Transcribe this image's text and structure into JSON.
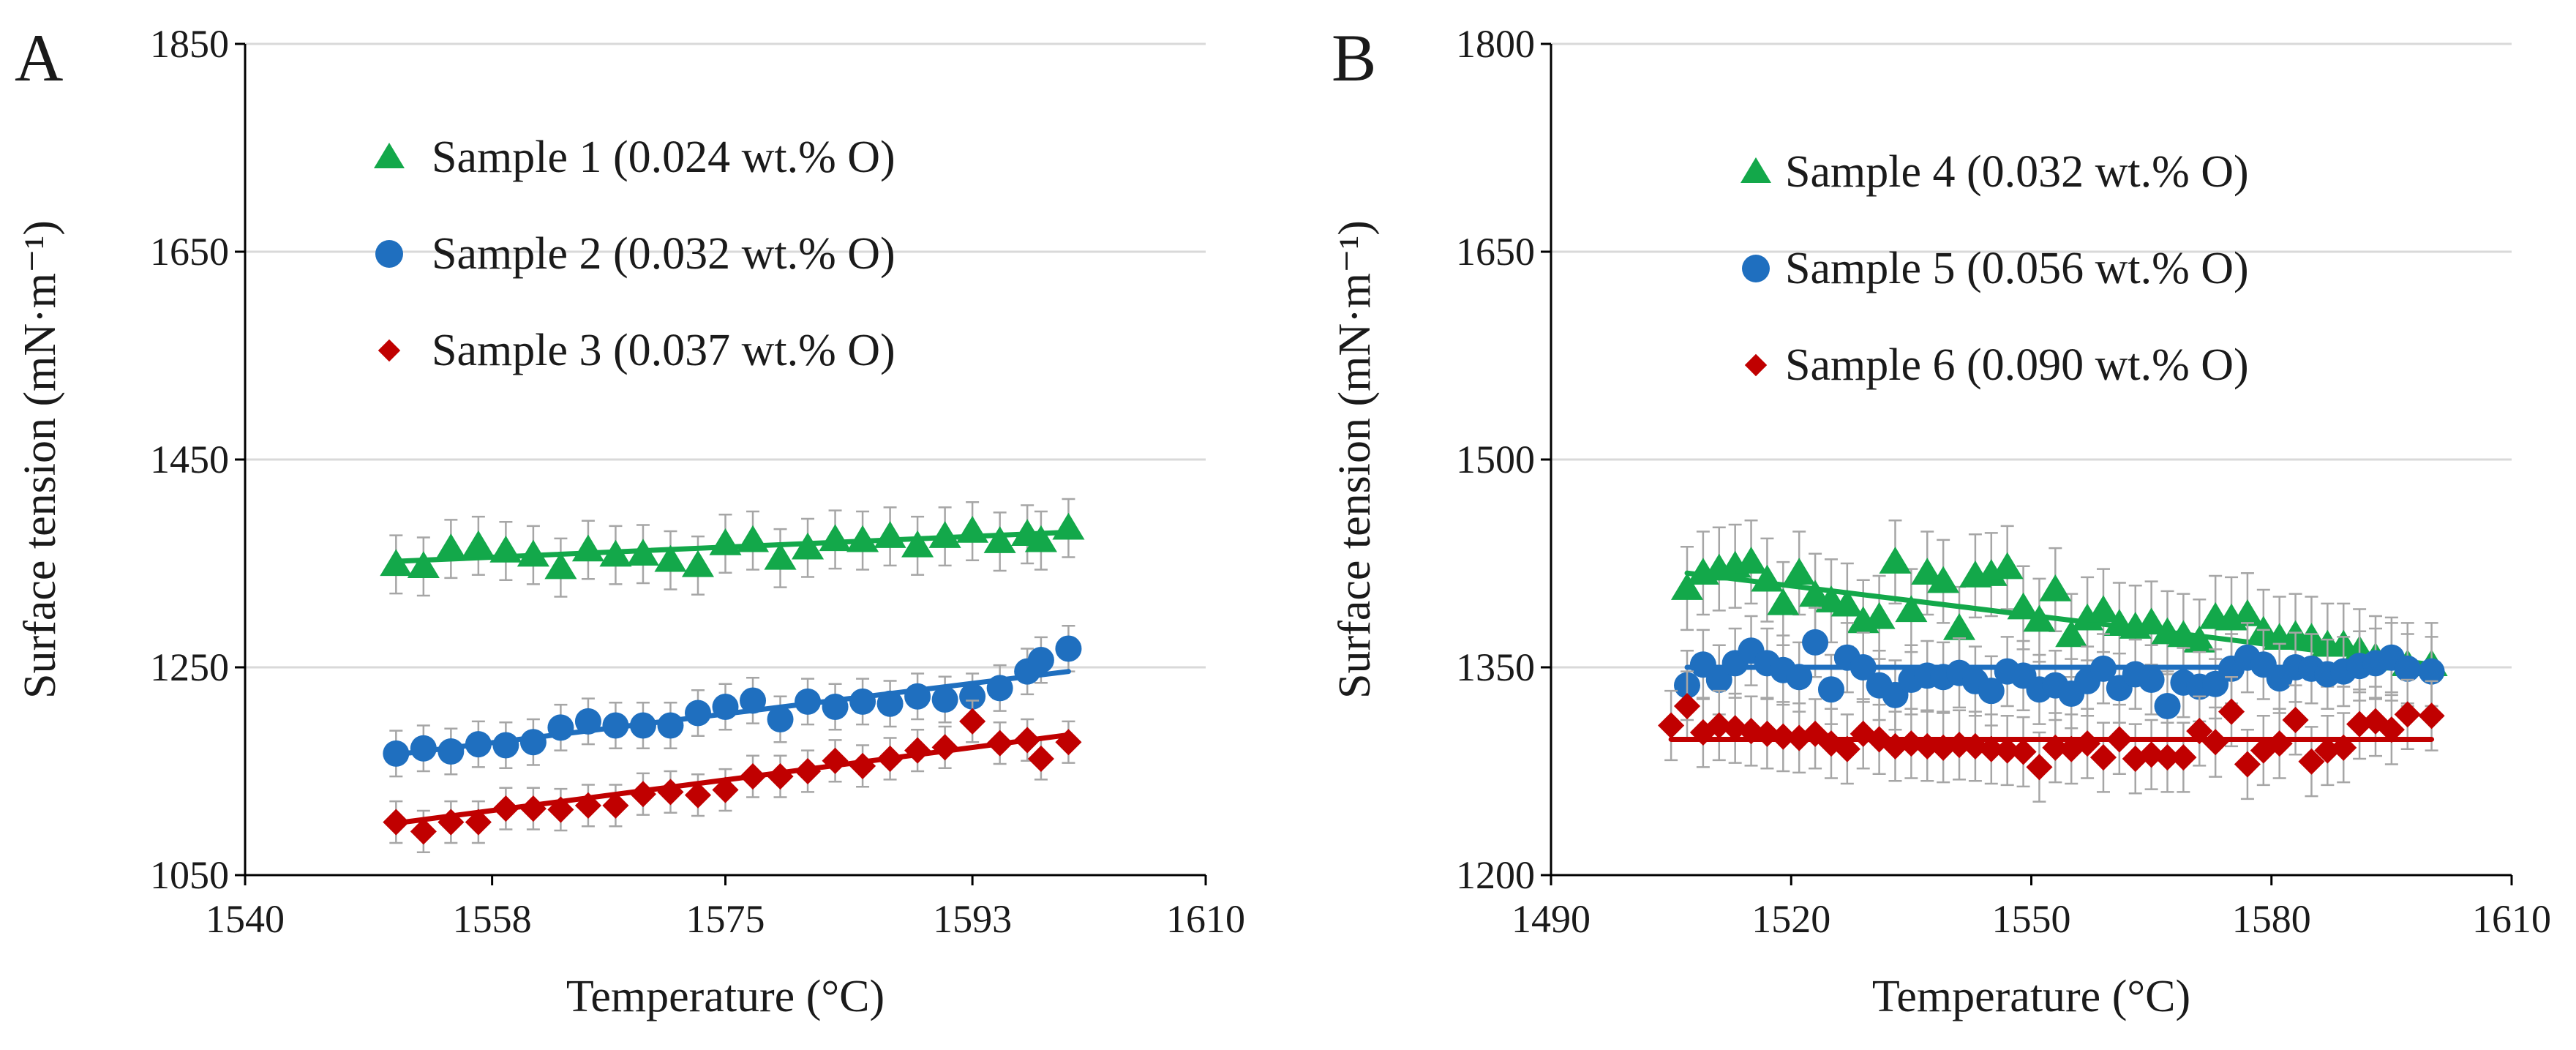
{
  "colors": {
    "green": "#13a84a",
    "blue": "#1f6fbf",
    "red": "#c00000",
    "errorbar": "#a6a6a6",
    "grid": "#d9d9d9",
    "axis": "#000000"
  },
  "chart_data": [
    {
      "panel_label": "A",
      "type": "scatter",
      "xlabel": "Temperature (°C)",
      "ylabel": "Surface tension (mN·m⁻¹)",
      "xlim": [
        1540,
        1610
      ],
      "ylim": [
        1050,
        1850
      ],
      "xticks": [
        1540,
        1558,
        1575,
        1593,
        1610
      ],
      "yticks": [
        1050,
        1250,
        1450,
        1650,
        1850
      ],
      "grid": "horizontal",
      "legend_position": "top-left",
      "series": [
        {
          "name": "Sample 1 (0.024 wt.% O)",
          "marker": "triangle",
          "color": "#13a84a",
          "error": 28,
          "x": [
            1551,
            1553,
            1555,
            1557,
            1559,
            1561,
            1563,
            1565,
            1567,
            1569,
            1571,
            1573,
            1575,
            1577,
            1579,
            1581,
            1583,
            1585,
            1587,
            1589,
            1591,
            1593,
            1595,
            1597,
            1598,
            1600
          ],
          "y": [
            1349,
            1347,
            1364,
            1367,
            1362,
            1358,
            1346,
            1363,
            1358,
            1359,
            1353,
            1348,
            1369,
            1372,
            1355,
            1365,
            1373,
            1372,
            1376,
            1367,
            1376,
            1381,
            1371,
            1378,
            1372,
            1384
          ],
          "fit": [
            [
              1551,
              1352
            ],
            [
              1600,
              1380
            ]
          ]
        },
        {
          "name": "Sample 2 (0.032 wt.% O)",
          "marker": "circle",
          "color": "#1f6fbf",
          "error": 22,
          "x": [
            1551,
            1553,
            1555,
            1557,
            1559,
            1561,
            1563,
            1565,
            1567,
            1569,
            1571,
            1573,
            1575,
            1577,
            1579,
            1581,
            1583,
            1585,
            1587,
            1589,
            1591,
            1593,
            1595,
            1597,
            1598,
            1600
          ],
          "y": [
            1167,
            1172,
            1169,
            1176,
            1175,
            1178,
            1192,
            1198,
            1194,
            1194,
            1194,
            1206,
            1212,
            1218,
            1200,
            1217,
            1212,
            1217,
            1215,
            1222,
            1219,
            1222,
            1230,
            1246,
            1257,
            1268
          ],
          "fit": [
            [
              1551,
              1166
            ],
            [
              1600,
              1246
            ]
          ]
        },
        {
          "name": "Sample 3 (0.037 wt.% O)",
          "marker": "diamond",
          "color": "#c00000",
          "error": 20,
          "x": [
            1551,
            1553,
            1555,
            1557,
            1559,
            1561,
            1563,
            1565,
            1567,
            1569,
            1571,
            1573,
            1575,
            1577,
            1579,
            1581,
            1583,
            1585,
            1587,
            1589,
            1591,
            1593,
            1595,
            1597,
            1598,
            1600
          ],
          "y": [
            1101,
            1092,
            1101,
            1101,
            1114,
            1114,
            1113,
            1117,
            1117,
            1128,
            1130,
            1127,
            1132,
            1145,
            1145,
            1150,
            1160,
            1155,
            1162,
            1170,
            1173,
            1198,
            1177,
            1180,
            1162,
            1178
          ],
          "fit": [
            [
              1551,
              1100
            ],
            [
              1600,
              1185
            ]
          ]
        }
      ]
    },
    {
      "panel_label": "B",
      "type": "scatter",
      "xlabel": "Temperature (°C)",
      "ylabel": "Surface tension (mN·m⁻¹)",
      "xlim": [
        1490,
        1610
      ],
      "ylim": [
        1200,
        1800
      ],
      "xticks": [
        1490,
        1520,
        1550,
        1580,
        1610
      ],
      "yticks": [
        1200,
        1350,
        1500,
        1650,
        1800
      ],
      "grid": "horizontal",
      "legend_position": "top-center",
      "series": [
        {
          "name": "Sample 4 (0.032 wt.% O)",
          "marker": "triangle",
          "color": "#13a84a",
          "error": 30,
          "x": [
            1507,
            1509,
            1511,
            1513,
            1515,
            1517,
            1519,
            1521,
            1523,
            1525,
            1527,
            1529,
            1531,
            1533,
            1535,
            1537,
            1539,
            1541,
            1543,
            1545,
            1547,
            1549,
            1551,
            1553,
            1555,
            1557,
            1559,
            1561,
            1563,
            1565,
            1567,
            1569,
            1571,
            1573,
            1575,
            1577,
            1579,
            1581,
            1583,
            1585,
            1587,
            1589,
            1591,
            1593,
            1595,
            1597,
            1600
          ],
          "y": [
            1407,
            1418,
            1421,
            1423,
            1426,
            1413,
            1396,
            1418,
            1402,
            1398,
            1395,
            1383,
            1386,
            1426,
            1391,
            1418,
            1412,
            1378,
            1416,
            1417,
            1422,
            1393,
            1384,
            1406,
            1373,
            1385,
            1391,
            1381,
            1379,
            1382,
            1375,
            1373,
            1369,
            1386,
            1385,
            1388,
            1376,
            1371,
            1373,
            1371,
            1366,
            1366,
            1362,
            1357,
            1356,
            1352,
            1352
          ],
          "fit": [
            [
              1507,
              1418
            ],
            [
              1600,
              1352
            ]
          ]
        },
        {
          "name": "Sample 5 (0.056 wt.% O)",
          "marker": "circle",
          "color": "#1f6fbf",
          "error": 25,
          "x": [
            1507,
            1509,
            1511,
            1513,
            1515,
            1517,
            1519,
            1521,
            1523,
            1525,
            1527,
            1529,
            1531,
            1533,
            1535,
            1537,
            1539,
            1541,
            1543,
            1545,
            1547,
            1549,
            1551,
            1553,
            1555,
            1557,
            1559,
            1561,
            1563,
            1565,
            1567,
            1569,
            1571,
            1573,
            1575,
            1577,
            1579,
            1581,
            1583,
            1585,
            1587,
            1589,
            1591,
            1593,
            1595,
            1597,
            1600
          ],
          "y": [
            1337,
            1352,
            1341,
            1353,
            1362,
            1353,
            1348,
            1343,
            1368,
            1334,
            1357,
            1350,
            1337,
            1330,
            1341,
            1344,
            1343,
            1346,
            1340,
            1333,
            1347,
            1344,
            1334,
            1337,
            1331,
            1340,
            1349,
            1335,
            1345,
            1341,
            1322,
            1339,
            1336,
            1338,
            1349,
            1357,
            1352,
            1342,
            1350,
            1349,
            1345,
            1347,
            1351,
            1353,
            1357,
            1349,
            1347
          ],
          "fit": [
            [
              1507,
              1350
            ],
            [
              1600,
              1350
            ]
          ]
        },
        {
          "name": "Sample 6 (0.090 wt.% O)",
          "marker": "diamond",
          "color": "#c00000",
          "error": 25,
          "x": [
            1505,
            1507,
            1509,
            1511,
            1513,
            1515,
            1517,
            1519,
            1521,
            1523,
            1525,
            1527,
            1529,
            1531,
            1533,
            1535,
            1537,
            1539,
            1541,
            1543,
            1545,
            1547,
            1549,
            1551,
            1553,
            1555,
            1557,
            1559,
            1561,
            1563,
            1565,
            1567,
            1569,
            1571,
            1573,
            1575,
            1577,
            1579,
            1581,
            1583,
            1585,
            1587,
            1589,
            1591,
            1593,
            1595,
            1597,
            1600
          ],
          "y": [
            1308,
            1322,
            1303,
            1308,
            1306,
            1304,
            1302,
            1300,
            1299,
            1302,
            1295,
            1291,
            1302,
            1298,
            1293,
            1295,
            1293,
            1292,
            1294,
            1293,
            1291,
            1290,
            1289,
            1278,
            1292,
            1291,
            1295,
            1285,
            1298,
            1284,
            1287,
            1285,
            1285,
            1304,
            1296,
            1318,
            1280,
            1290,
            1295,
            1312,
            1282,
            1290,
            1292,
            1309,
            1311,
            1305,
            1316,
            1315
          ],
          "fit": [
            [
              1505,
              1298
            ],
            [
              1600,
              1298
            ]
          ]
        }
      ]
    }
  ]
}
